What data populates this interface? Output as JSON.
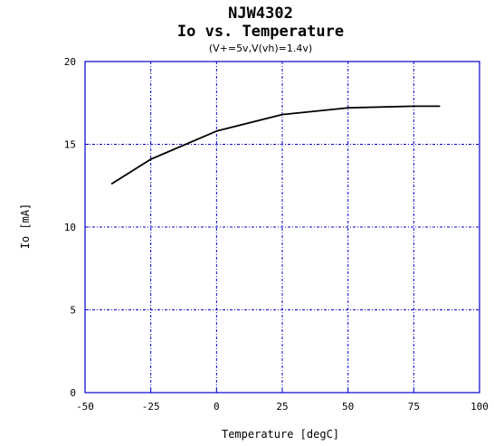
{
  "chart_data": {
    "type": "line",
    "title": "NJW4302",
    "subtitle": "Io vs. Temperature",
    "condition": "(V+=5v,V(vh)=1.4v)",
    "xlabel": "Temperature [degC]",
    "ylabel": "Io [mA]",
    "xlim": [
      -50,
      100
    ],
    "ylim": [
      0,
      20
    ],
    "xticks": [
      -50,
      -25,
      0,
      25,
      50,
      75,
      100
    ],
    "yticks": [
      0,
      5,
      10,
      15,
      20
    ],
    "xtick_labels": [
      "-50",
      "-25",
      "0",
      "25",
      "50",
      "75",
      "100"
    ],
    "ytick_labels": [
      "0",
      "5",
      "10",
      "15",
      "20"
    ],
    "grid": true,
    "colors": {
      "frame": "#0000cc",
      "grid": "#0000cc",
      "line": "#000000",
      "background": "#ffffff"
    },
    "series": [
      {
        "x": [
          -40,
          -25,
          0,
          25,
          50,
          75,
          85
        ],
        "y": [
          12.6,
          14.1,
          15.8,
          16.8,
          17.2,
          17.3,
          17.3
        ]
      }
    ]
  }
}
